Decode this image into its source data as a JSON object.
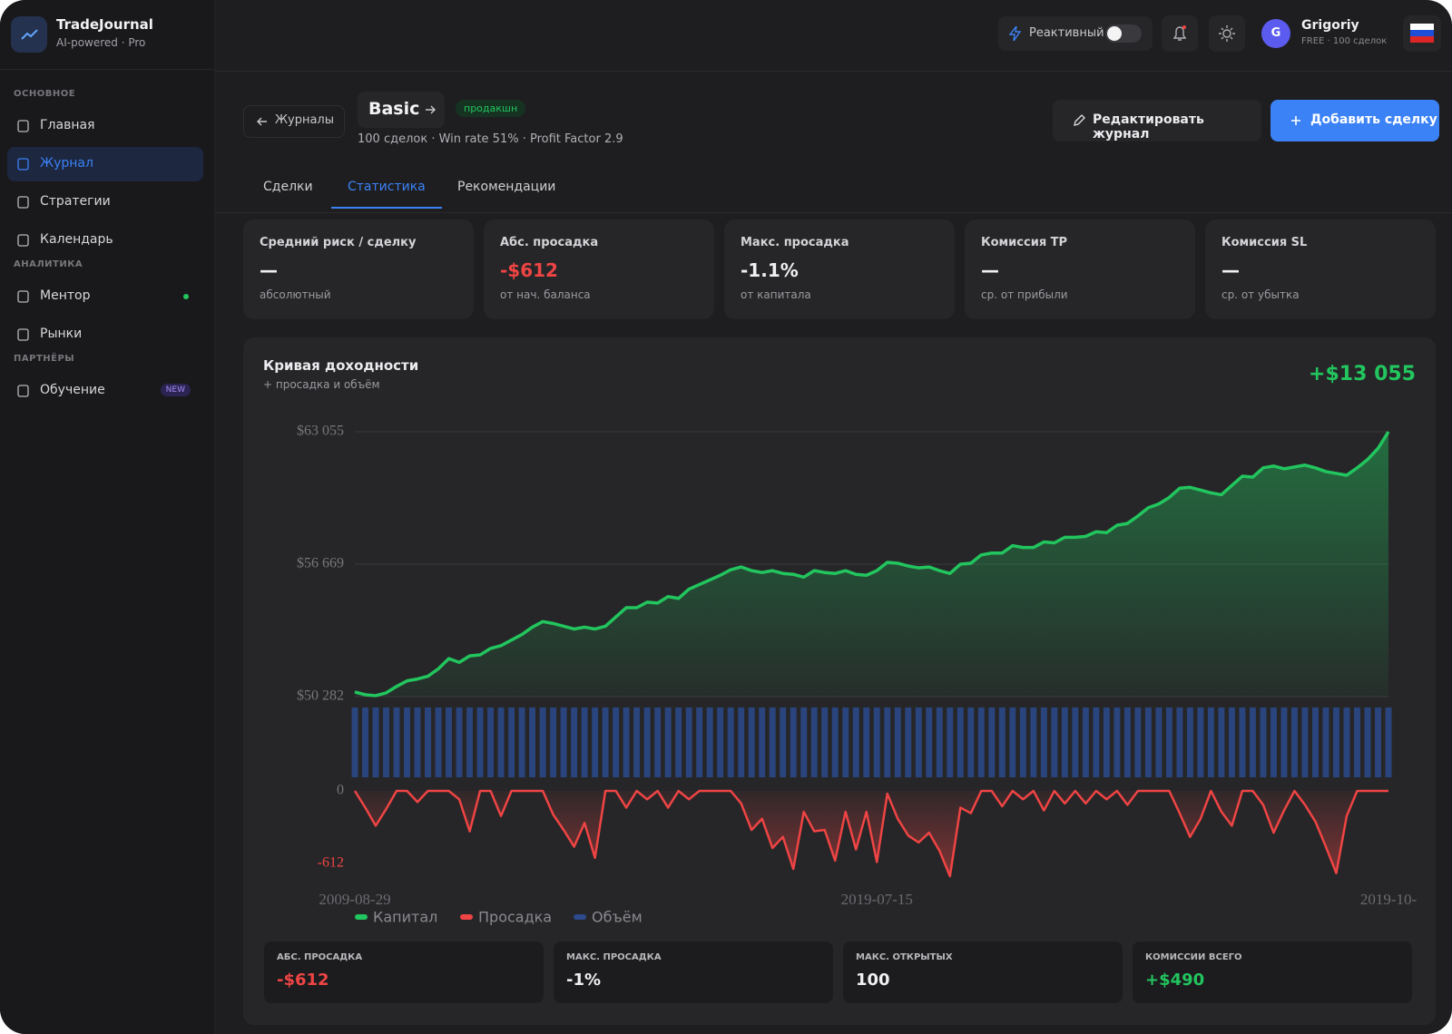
{
  "sidebar": {
    "brand": {
      "title": "TradeJournal",
      "subtitle": "AI-powered · Pro"
    },
    "sections": [
      {
        "title": "ОСНОВНОЕ",
        "items": [
          {
            "label": "Главная",
            "active": false
          },
          {
            "label": "Журнал",
            "active": true
          },
          {
            "label": "Стратегии",
            "active": false
          },
          {
            "label": "Календарь",
            "active": false
          }
        ]
      },
      {
        "title": "АНАЛИТИКА",
        "items": [
          {
            "label": "Ментор",
            "active": false,
            "dot": true
          },
          {
            "label": "Рынки",
            "active": false
          }
        ]
      },
      {
        "title": "ПАРТНЁРЫ",
        "items": [
          {
            "label": "Обучение",
            "active": false,
            "badge": "NEW"
          }
        ]
      }
    ]
  },
  "topbar": {
    "toggle": "Реактивный",
    "avatar": "G",
    "user_name": "Grigoriy",
    "user_plan": "FREE · 100 сделок"
  },
  "header": {
    "back": "Журналы",
    "journal": "Basic",
    "badge": "продакшн",
    "meta": "100 сделок · Win rate 51% · Profit Factor 2.9",
    "edit_button": "Редактировать журнал",
    "add_button": "Добавить сделку"
  },
  "tabs": {
    "items": [
      "Сделки",
      "Статистика",
      "Рекомендации"
    ],
    "active": 1
  },
  "stat_cards": [
    {
      "label": "Средний риск / сделку",
      "value": "—",
      "sub": "абсолютный",
      "tone": "neutral"
    },
    {
      "label": "Абс. просадка",
      "value": "-$612",
      "sub": "от нач. баланса",
      "tone": "negative"
    },
    {
      "label": "Макс. просадка",
      "value": "-1.1%",
      "sub": "от капитала",
      "tone": "neutral"
    },
    {
      "label": "Комиссия TP",
      "value": "—",
      "sub": "ср. от прибыли",
      "tone": "neutral"
    },
    {
      "label": "Комиссия SL",
      "value": "—",
      "sub": "ср. от убытка",
      "tone": "neutral"
    }
  ],
  "chart_data": {
    "type": "line",
    "title": "Кривая доходности",
    "subtitle": "+ просадка и объём",
    "total_label": "+$13 055",
    "categories": [
      "2009-08-29",
      null,
      null,
      null,
      null,
      null,
      null,
      null,
      null,
      null,
      null,
      null,
      null,
      null,
      null,
      null,
      null,
      null,
      null,
      null,
      null,
      null,
      null,
      null,
      null,
      null,
      null,
      null,
      null,
      null,
      null,
      null,
      null,
      null,
      null,
      null,
      null,
      null,
      null,
      null,
      null,
      null,
      null,
      null,
      null,
      null,
      null,
      null,
      null,
      null,
      "2019-07-15",
      null,
      null,
      null,
      null,
      null,
      null,
      null,
      null,
      null,
      null,
      null,
      null,
      null,
      null,
      null,
      null,
      null,
      null,
      null,
      null,
      null,
      null,
      null,
      null,
      null,
      null,
      null,
      null,
      null,
      null,
      null,
      null,
      null,
      null,
      null,
      null,
      null,
      null,
      null,
      null,
      null,
      null,
      null,
      null,
      null,
      null,
      null,
      null,
      "2019-10-"
    ],
    "series": [
      {
        "name": "Капитал",
        "color": "#22c55e",
        "fill": true,
        "values": [
          50505,
          50371,
          50327,
          50461,
          50773,
          51041,
          51131,
          51265,
          51622,
          52113,
          51934,
          52247,
          52292,
          52604,
          52738,
          53006,
          53274,
          53632,
          53899,
          53810,
          53676,
          53542,
          53632,
          53542,
          53676,
          54123,
          54569,
          54569,
          54837,
          54793,
          55105,
          55016,
          55463,
          55686,
          55909,
          56132,
          56400,
          56534,
          56356,
          56266,
          56356,
          56222,
          56177,
          56043,
          56356,
          56266,
          56222,
          56356,
          56177,
          56132,
          56356,
          56758,
          56713,
          56579,
          56490,
          56534,
          56356,
          56222,
          56668,
          56713,
          57115,
          57204,
          57204,
          57562,
          57472,
          57472,
          57740,
          57696,
          57964,
          57964,
          58008,
          58231,
          58187,
          58544,
          58633,
          58991,
          59393,
          59571,
          59884,
          60331,
          60375,
          60241,
          60107,
          60018,
          60464,
          60911,
          60866,
          61313,
          61402,
          61268,
          61358,
          61447,
          61313,
          61134,
          61045,
          60956,
          61313,
          61715,
          62251,
          63055
        ]
      },
      {
        "name": "Просадка",
        "color": "#ef4444",
        "fill": true,
        "axis": "y2",
        "values": [
          0,
          -120,
          -250,
          -130,
          0,
          0,
          -80,
          0,
          0,
          0,
          -60,
          -290,
          0,
          0,
          -180,
          0,
          0,
          0,
          0,
          -170,
          -280,
          -400,
          -230,
          -480,
          0,
          0,
          -120,
          0,
          -60,
          0,
          -120,
          0,
          -60,
          0,
          0,
          0,
          0,
          -90,
          -280,
          -200,
          -410,
          -330,
          -560,
          -150,
          -290,
          -280,
          -500,
          -150,
          -420,
          -150,
          -510,
          -20,
          -200,
          -320,
          -370,
          -300,
          -430,
          -612,
          -120,
          -160,
          0,
          0,
          -110,
          0,
          -60,
          0,
          -140,
          0,
          -90,
          0,
          -90,
          0,
          -60,
          0,
          -100,
          0,
          0,
          0,
          0,
          -160,
          -330,
          -200,
          0,
          -150,
          -250,
          0,
          0,
          -100,
          -300,
          -140,
          0,
          -100,
          -220,
          -400,
          -590,
          -180,
          0,
          0,
          0,
          0
        ]
      },
      {
        "name": "Объём",
        "color": "#2c4a8c",
        "type": "bar",
        "axis": "volume",
        "values": [
          1,
          1,
          1,
          1,
          1,
          1,
          1,
          1,
          1,
          1,
          1,
          1,
          1,
          1,
          1,
          1,
          1,
          1,
          1,
          1,
          1,
          1,
          1,
          1,
          1,
          1,
          1,
          1,
          1,
          1,
          1,
          1,
          1,
          1,
          1,
          1,
          1,
          1,
          1,
          1,
          1,
          1,
          1,
          1,
          1,
          1,
          1,
          1,
          1,
          1,
          1,
          1,
          1,
          1,
          1,
          1,
          1,
          1,
          1,
          1,
          1,
          1,
          1,
          1,
          1,
          1,
          1,
          1,
          1,
          1,
          1,
          1,
          1,
          1,
          1,
          1,
          1,
          1,
          1,
          1,
          1,
          1,
          1,
          1,
          1,
          1,
          1,
          1,
          1,
          1,
          1,
          1,
          1,
          1,
          1,
          1,
          1,
          1,
          1,
          1
        ]
      }
    ],
    "ylim": [
      50282,
      63055
    ],
    "yticks": [
      {
        "value": 50282,
        "label": "$50 282"
      },
      {
        "value": 56669,
        "label": "$56 669"
      },
      {
        "value": 63055,
        "label": "$63 055"
      }
    ],
    "y2lim": [
      -612,
      0
    ],
    "y2ticks": [
      0,
      -612
    ],
    "grid": true
  },
  "summary": [
    {
      "label": "АБС. ПРОСАДКА",
      "value": "-$612",
      "tone": "negative"
    },
    {
      "label": "МАКС. ПРОСАДКА",
      "value": "-1%",
      "tone": "neutral"
    },
    {
      "label": "МАКС. ОТКРЫТЫХ",
      "value": "100",
      "tone": "neutral"
    },
    {
      "label": "КОМИССИИ ВСЕГО",
      "value": "+$490",
      "tone": "positive"
    }
  ]
}
